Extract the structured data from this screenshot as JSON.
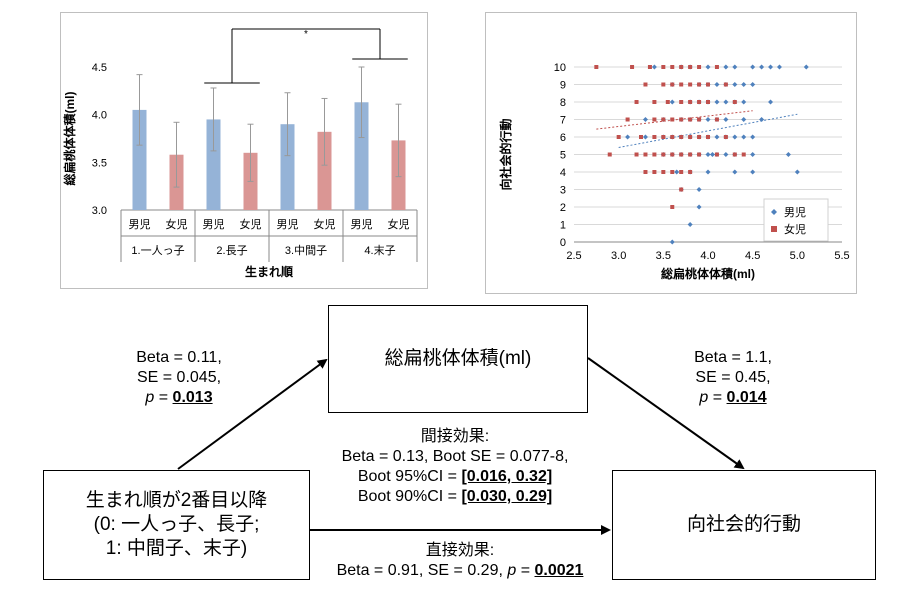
{
  "chart_data": [
    {
      "type": "bar",
      "ylabel": "総扁桃体体積(ml)",
      "xlabel": "生まれ順",
      "ylim": [
        3.0,
        4.5
      ],
      "yticks": [
        "3.0",
        "3.5",
        "4.0",
        "4.5"
      ],
      "groups": [
        "1.一人っ子",
        "2.長子",
        "3.中間子",
        "4.末子"
      ],
      "categories": [
        "男児",
        "女児",
        "男児",
        "女児",
        "男児",
        "女児",
        "男児",
        "女児"
      ],
      "values": [
        4.05,
        3.58,
        3.95,
        3.6,
        3.9,
        3.82,
        4.13,
        3.73
      ],
      "err_high": [
        4.42,
        3.92,
        4.28,
        3.9,
        4.23,
        4.17,
        4.5,
        4.11
      ],
      "err_low": [
        3.68,
        3.24,
        3.62,
        3.3,
        3.57,
        3.47,
        3.76,
        3.35
      ],
      "colors": [
        "#95b3d7",
        "#da9694",
        "#95b3d7",
        "#da9694",
        "#95b3d7",
        "#da9694",
        "#95b3d7",
        "#da9694"
      ],
      "significance": "*",
      "grid": false
    },
    {
      "type": "scatter",
      "xlabel": "総扁桃体体積(ml)",
      "ylabel": "向社会的行動",
      "xlim": [
        2.5,
        5.5
      ],
      "ylim": [
        0,
        10
      ],
      "xticks": [
        "2.5",
        "3.0",
        "3.5",
        "4.0",
        "4.5",
        "5.0",
        "5.5"
      ],
      "yticks": [
        "0",
        "1",
        "2",
        "3",
        "4",
        "5",
        "6",
        "7",
        "8",
        "9",
        "10"
      ],
      "grid": true,
      "legend_position": "bottom-right",
      "series": [
        {
          "name": "男児",
          "color": "#4f81bd",
          "marker": "diamond",
          "trend": [
            [
              3.0,
              5.4
            ],
            [
              5.0,
              7.3
            ]
          ],
          "points": [
            [
              3.6,
              0
            ],
            [
              3.8,
              1
            ],
            [
              3.9,
              2
            ],
            [
              3.7,
              3
            ],
            [
              3.9,
              3
            ],
            [
              3.65,
              4
            ],
            [
              3.8,
              4
            ],
            [
              4.0,
              4
            ],
            [
              4.3,
              4
            ],
            [
              4.5,
              4
            ],
            [
              5.0,
              4
            ],
            [
              3.5,
              5
            ],
            [
              3.6,
              5
            ],
            [
              3.7,
              5
            ],
            [
              3.8,
              5
            ],
            [
              3.9,
              5
            ],
            [
              4.0,
              5
            ],
            [
              4.05,
              5
            ],
            [
              4.1,
              5
            ],
            [
              4.2,
              5
            ],
            [
              4.3,
              5
            ],
            [
              4.5,
              5
            ],
            [
              4.9,
              5
            ],
            [
              3.3,
              6
            ],
            [
              3.5,
              6
            ],
            [
              3.6,
              6
            ],
            [
              3.7,
              6
            ],
            [
              3.8,
              6
            ],
            [
              3.9,
              6
            ],
            [
              4.0,
              6
            ],
            [
              4.1,
              6
            ],
            [
              4.2,
              6
            ],
            [
              4.3,
              6
            ],
            [
              4.4,
              6
            ],
            [
              4.5,
              6
            ],
            [
              3.1,
              6
            ],
            [
              3.3,
              7
            ],
            [
              3.5,
              7
            ],
            [
              3.7,
              7
            ],
            [
              3.8,
              7
            ],
            [
              3.9,
              7
            ],
            [
              4.0,
              7
            ],
            [
              4.1,
              7
            ],
            [
              4.2,
              7
            ],
            [
              4.4,
              7
            ],
            [
              4.6,
              7
            ],
            [
              3.6,
              8
            ],
            [
              3.8,
              8
            ],
            [
              3.9,
              8
            ],
            [
              4.0,
              8
            ],
            [
              4.1,
              8
            ],
            [
              4.2,
              8
            ],
            [
              4.3,
              8
            ],
            [
              4.4,
              8
            ],
            [
              4.7,
              8
            ],
            [
              3.6,
              9
            ],
            [
              3.9,
              9
            ],
            [
              4.0,
              9
            ],
            [
              4.1,
              9
            ],
            [
              4.2,
              9
            ],
            [
              4.3,
              9
            ],
            [
              4.4,
              9
            ],
            [
              4.5,
              9
            ],
            [
              3.4,
              10
            ],
            [
              3.7,
              10
            ],
            [
              3.8,
              10
            ],
            [
              4.0,
              10
            ],
            [
              4.2,
              10
            ],
            [
              4.3,
              10
            ],
            [
              4.5,
              10
            ],
            [
              4.6,
              10
            ],
            [
              4.7,
              10
            ],
            [
              4.8,
              10
            ],
            [
              5.1,
              10
            ]
          ]
        },
        {
          "name": "女児",
          "color": "#c0504d",
          "marker": "square",
          "trend": [
            [
              2.75,
              6.45
            ],
            [
              4.5,
              7.5
            ]
          ],
          "points": [
            [
              3.6,
              2
            ],
            [
              3.7,
              3
            ],
            [
              3.3,
              4
            ],
            [
              3.4,
              4
            ],
            [
              3.5,
              4
            ],
            [
              3.6,
              4
            ],
            [
              3.7,
              4
            ],
            [
              3.8,
              4
            ],
            [
              2.9,
              5
            ],
            [
              3.2,
              5
            ],
            [
              3.3,
              5
            ],
            [
              3.4,
              5
            ],
            [
              3.5,
              5
            ],
            [
              3.6,
              5
            ],
            [
              3.7,
              5
            ],
            [
              3.8,
              5
            ],
            [
              3.9,
              5
            ],
            [
              4.1,
              5
            ],
            [
              4.3,
              5
            ],
            [
              4.4,
              5
            ],
            [
              3.0,
              6
            ],
            [
              3.25,
              6
            ],
            [
              3.4,
              6
            ],
            [
              3.5,
              6
            ],
            [
              3.6,
              6
            ],
            [
              3.7,
              6
            ],
            [
              3.8,
              6
            ],
            [
              3.9,
              6
            ],
            [
              4.0,
              6
            ],
            [
              4.2,
              6
            ],
            [
              3.1,
              7
            ],
            [
              3.4,
              7
            ],
            [
              3.5,
              7
            ],
            [
              3.6,
              7
            ],
            [
              3.7,
              7
            ],
            [
              3.8,
              7
            ],
            [
              3.9,
              7
            ],
            [
              4.1,
              7
            ],
            [
              3.2,
              8
            ],
            [
              3.4,
              8
            ],
            [
              3.55,
              8
            ],
            [
              3.7,
              8
            ],
            [
              3.8,
              8
            ],
            [
              3.9,
              8
            ],
            [
              4.0,
              8
            ],
            [
              4.3,
              8
            ],
            [
              3.3,
              9
            ],
            [
              3.5,
              9
            ],
            [
              3.6,
              9
            ],
            [
              3.7,
              9
            ],
            [
              3.8,
              9
            ],
            [
              3.9,
              9
            ],
            [
              4.0,
              9
            ],
            [
              4.2,
              9
            ],
            [
              2.75,
              10
            ],
            [
              3.15,
              10
            ],
            [
              3.35,
              10
            ],
            [
              3.5,
              10
            ],
            [
              3.6,
              10
            ],
            [
              3.7,
              10
            ],
            [
              3.8,
              10
            ],
            [
              3.9,
              10
            ],
            [
              4.1,
              10
            ]
          ]
        }
      ]
    }
  ],
  "diagram": {
    "mediator": "総扁桃体体積(ml)",
    "predictor": [
      "生まれ順が2番目以降",
      "(0: 一人っ子、長子;",
      "1: 中間子、末子)"
    ],
    "outcome": "向社会的行動",
    "path_a": {
      "beta": "Beta = 0.11,",
      "se": "SE = 0.045,",
      "p_prefix": " = ",
      "p_value": "0.013",
      "p_label": "p"
    },
    "path_b": {
      "beta": "Beta = 1.1,",
      "se": "SE = 0.45,",
      "p_prefix": " = ",
      "p_value": "0.014",
      "p_label": "p"
    },
    "indirect": {
      "title": "間接効果:",
      "line1": "Beta = 0.13, Boot SE = 0.077-8,",
      "ci95_label": "Boot 95%CI = ",
      "ci95": "[0.016, 0.32]",
      "ci90_label": "Boot 90%CI = ",
      "ci90": "[0.030, 0.29]"
    },
    "direct": {
      "title": "直接効果:",
      "line1": "Beta = 0.91, SE = 0.29, ",
      "p_label": "p",
      "p_prefix": " = ",
      "p_value": "0.0021"
    }
  }
}
